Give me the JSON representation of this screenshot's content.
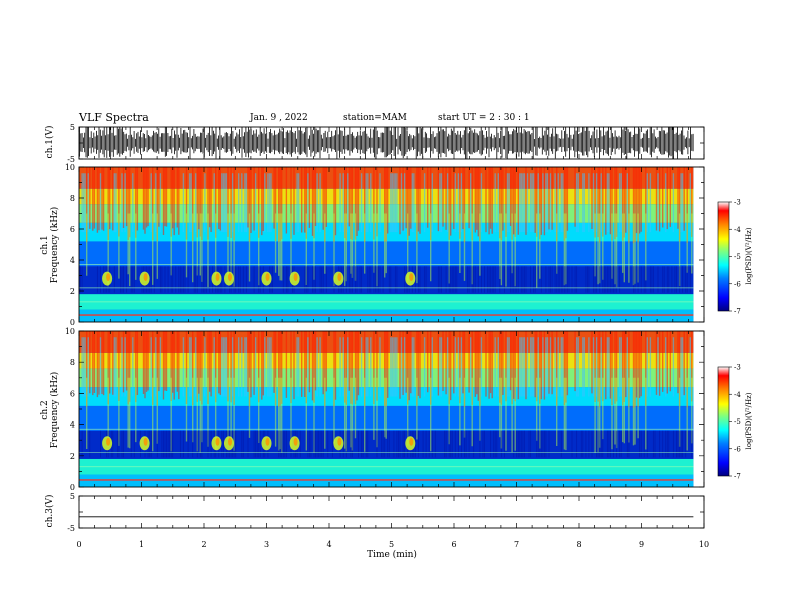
{
  "header": {
    "title": "VLF Spectra",
    "date": "Jan. 9 , 2022",
    "station": "station=MAM",
    "start": "start UT = 2 : 30 : 1"
  },
  "colors": {
    "jet": [
      "#00007f",
      "#0000ff",
      "#007fff",
      "#00ffff",
      "#7fff7f",
      "#ffff00",
      "#ff7f00",
      "#ff0000",
      "#7f0000"
    ]
  },
  "chart_data": {
    "type": "heatmap",
    "xlabel": "Time (min)",
    "xlim": [
      0,
      10
    ],
    "xticks": [
      0,
      1,
      2,
      3,
      4,
      5,
      6,
      7,
      8,
      9,
      10
    ],
    "data_end_min": 9.83,
    "panels": [
      {
        "name": "waveform_ch1",
        "ylabel": "ch.1(V)",
        "ylim": [
          -5,
          5
        ],
        "yticks": [
          5,
          -5
        ],
        "type": "waveform"
      },
      {
        "name": "spectrogram_ch1",
        "ylabel_line1": "ch.1",
        "ylabel_line2": "Frequency (kHz)",
        "ylim": [
          0,
          10
        ],
        "yticks": [
          0,
          2,
          4,
          6,
          8,
          10
        ],
        "type": "spectrogram"
      },
      {
        "name": "spectrogram_ch2",
        "ylabel_line1": "ch.2",
        "ylabel_line2": "Frequency (kHz)",
        "ylim": [
          0,
          10
        ],
        "yticks": [
          0,
          2,
          4,
          6,
          8,
          10
        ],
        "type": "spectrogram"
      },
      {
        "name": "waveform_ch3",
        "ylabel": "ch.3(V)",
        "ylim": [
          -5,
          5
        ],
        "yticks": [
          5,
          -5
        ],
        "type": "waveform",
        "level": -1.5
      }
    ],
    "colorbar": {
      "label": "log(PSD)(V²/Hz)",
      "range": [
        -7,
        -3
      ],
      "ticks": [
        -3,
        -4,
        -5,
        -6,
        -7
      ],
      "tick_labels": [
        "-3",
        "-4",
        "-5",
        "-6",
        "-7"
      ]
    },
    "features": {
      "tones_khz": [
        0.45,
        1.3,
        2.2,
        3.7
      ],
      "whistler_bursts_min": [
        0.45,
        1.05,
        2.2,
        2.4,
        3.0,
        3.45,
        4.15,
        5.3
      ]
    }
  }
}
